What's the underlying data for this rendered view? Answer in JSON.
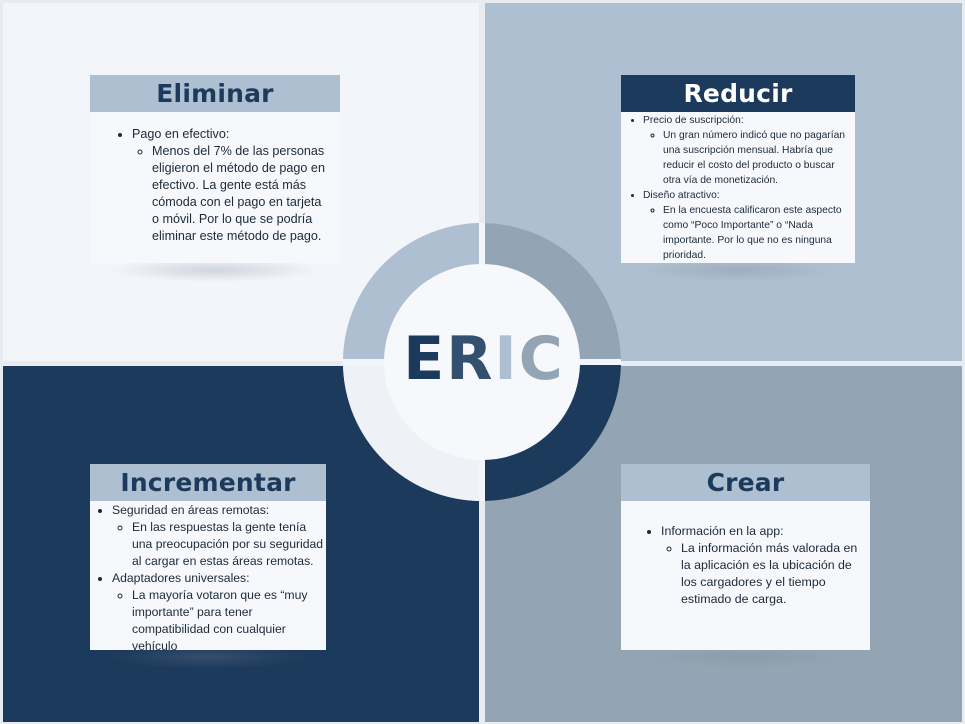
{
  "colors": {
    "navy": "#1c3a5c",
    "light_blue_gray": "#adbfd0",
    "mid_gray_blue": "#93a5b4",
    "pale": "#f2f5f9"
  },
  "center": {
    "letters": [
      {
        "char": "E",
        "color": "#1c3a5c"
      },
      {
        "char": "R",
        "color": "#33506f"
      },
      {
        "char": "I",
        "color": "#adbfd0"
      },
      {
        "char": "C",
        "color": "#93a5b4"
      }
    ]
  },
  "eliminar": {
    "title": "Eliminar",
    "items": [
      {
        "label": "Pago en efectivo:",
        "sub": [
          "Menos del 7% de las personas eligieron el método de pago en efectivo. La gente está más cómoda con el pago en tarjeta o móvil. Por lo que se podría eliminar este método de pago."
        ]
      }
    ]
  },
  "reducir": {
    "title": "Reducir",
    "items": [
      {
        "label": "Precio de suscripción:",
        "sub": [
          "Un gran número indicó que no pagarían una suscripción mensual. Habría que reducir el costo del producto o buscar otra vía de monetización."
        ]
      },
      {
        "label": "Diseño atractivo:",
        "sub": [
          "En la encuesta calificaron este aspecto como “Poco Importante” o “Nada importante. Por lo que no es ninguna prioridad."
        ]
      }
    ]
  },
  "incrementar": {
    "title": "Incrementar",
    "items": [
      {
        "label": "Seguridad en áreas remotas:",
        "sub": [
          "En las respuestas la gente tenía una preocupación por su seguridad al cargar en estas áreas remotas."
        ]
      },
      {
        "label": "Adaptadores universales:",
        "sub": [
          "La mayoría votaron que es “muy importante” para tener compatibilidad con cualquier vehículo"
        ]
      }
    ]
  },
  "crear": {
    "title": "Crear",
    "items": [
      {
        "label": "Información en la app:",
        "sub": [
          "La información más valorada en la aplicación es la ubicación de los cargadores y el tiempo estimado de carga."
        ]
      }
    ]
  }
}
